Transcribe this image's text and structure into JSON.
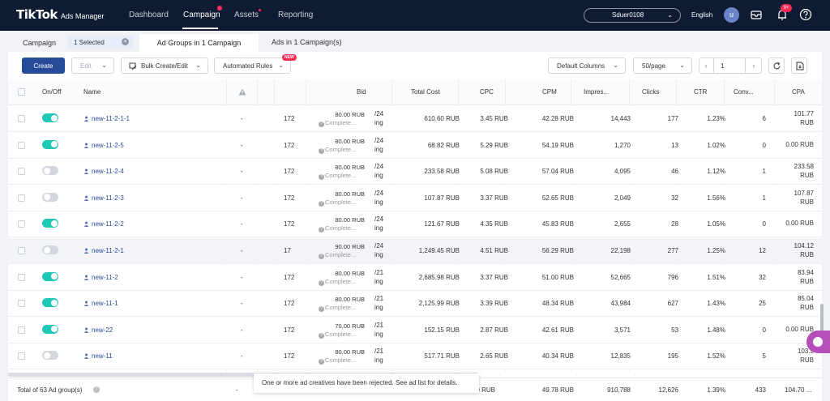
{
  "nav": {
    "logo_brand": "TikTok",
    "logo_sub": "Ads Manager",
    "items": [
      "Dashboard",
      "Campaign",
      "Assets",
      "Reporting"
    ],
    "account": "Sduer0108",
    "language": "English",
    "avatar": "u",
    "notification_badge": "9+"
  },
  "tabs": {
    "campaign": "Campaign",
    "selected_chip": "1 Selected",
    "chip_close": "×",
    "ad_groups": "Ad Groups in 1 Campaign",
    "ads": "Ads in 1 Campaign(s)"
  },
  "toolbar": {
    "create": "Create",
    "edit": "Edit",
    "bulk": "Bulk Create/Edit",
    "rules": "Automated Rules",
    "new_badge": "NEW",
    "columns": "Default Columns",
    "per_page": "50/page",
    "page": "1",
    "prev": "‹",
    "next": "›"
  },
  "table": {
    "headers": {
      "onoff": "On/Off",
      "name": "Name",
      "bid": "Bid",
      "total_cost": "Total Cost",
      "cpc": "CPC",
      "cpm": "CPM",
      "impressions": "Impres...",
      "clicks": "Clicks",
      "ctr": "CTR",
      "conversions": "Conv...",
      "cpa": "CPA"
    },
    "rows": [
      {
        "on": true,
        "name": "new-11-2-1-1",
        "status": "-",
        "budget": "172",
        "bid": "80.00 RUB",
        "bid_type": "Complete...",
        "sched_a": "/24",
        "sched_b": "ing",
        "cost": "610.60 RUB",
        "cpc": "3.45 RUB",
        "cpm": "42.28 RUB",
        "impr": "14,443",
        "clicks": "177",
        "ctr": "1.23%",
        "conv": "6",
        "cpa_a": "101.77",
        "cpa_b": "RUB"
      },
      {
        "on": true,
        "name": "new-11-2-5",
        "status": "-",
        "budget": "172",
        "bid": "80.00 RUB",
        "bid_type": "Complete...",
        "sched_a": "/24",
        "sched_b": "ing",
        "cost": "68.82 RUB",
        "cpc": "5.29 RUB",
        "cpm": "54.19 RUB",
        "impr": "1,270",
        "clicks": "13",
        "ctr": "1.02%",
        "conv": "0",
        "cpa_a": "0.00 RUB",
        "cpa_b": ""
      },
      {
        "on": false,
        "name": "new-11-2-4",
        "status": "-",
        "budget": "172",
        "bid": "80.00 RUB",
        "bid_type": "Complete...",
        "sched_a": "/24",
        "sched_b": "ing",
        "cost": "233.58 RUB",
        "cpc": "5.08 RUB",
        "cpm": "57.04 RUB",
        "impr": "4,095",
        "clicks": "46",
        "ctr": "1.12%",
        "conv": "1",
        "cpa_a": "233.58",
        "cpa_b": "RUB"
      },
      {
        "on": false,
        "name": "new-11-2-3",
        "status": "-",
        "budget": "172",
        "bid": "80.00 RUB",
        "bid_type": "Complete...",
        "sched_a": "/24",
        "sched_b": "ing",
        "cost": "107.87 RUB",
        "cpc": "3.37 RUB",
        "cpm": "52.65 RUB",
        "impr": "2,049",
        "clicks": "32",
        "ctr": "1.56%",
        "conv": "1",
        "cpa_a": "107.87",
        "cpa_b": "RUB"
      },
      {
        "on": true,
        "name": "new-11-2-2",
        "status": "-",
        "budget": "172",
        "bid": "80.00 RUB",
        "bid_type": "Complete...",
        "sched_a": "/24",
        "sched_b": "ing",
        "cost": "121.67 RUB",
        "cpc": "4.35 RUB",
        "cpm": "45.83 RUB",
        "impr": "2,655",
        "clicks": "28",
        "ctr": "1.05%",
        "conv": "0",
        "cpa_a": "0.00 RUB",
        "cpa_b": ""
      },
      {
        "on": false,
        "name": "new-11-2-1",
        "status": "-",
        "budget": "17",
        "bid": "90.00 RUB",
        "bid_type": "Complete...",
        "sched_a": "/24",
        "sched_b": "ing",
        "cost": "1,249.45 RUB",
        "cpc": "4.51 RUB",
        "cpm": "56.29 RUB",
        "impr": "22,198",
        "clicks": "277",
        "ctr": "1.25%",
        "conv": "12",
        "cpa_a": "104.12",
        "cpa_b": "RUB",
        "highlight": true
      },
      {
        "on": true,
        "name": "new-11-2",
        "status": "-",
        "budget": "172",
        "bid": "80.00 RUB",
        "bid_type": "Complete...",
        "sched_a": "/21",
        "sched_b": "ing",
        "cost": "2,685.98 RUB",
        "cpc": "3.37 RUB",
        "cpm": "51.00 RUB",
        "impr": "52,665",
        "clicks": "796",
        "ctr": "1.51%",
        "conv": "32",
        "cpa_a": "83.94",
        "cpa_b": "RUB"
      },
      {
        "on": true,
        "name": "new-11-1",
        "status": "-",
        "budget": "172",
        "bid": "80.00 RUB",
        "bid_type": "Complete...",
        "sched_a": "/21",
        "sched_b": "ing",
        "cost": "2,125.99 RUB",
        "cpc": "3.39 RUB",
        "cpm": "48.34 RUB",
        "impr": "43,984",
        "clicks": "627",
        "ctr": "1.43%",
        "conv": "25",
        "cpa_a": "85.04",
        "cpa_b": "RUB"
      },
      {
        "on": true,
        "name": "new-22",
        "status": "-",
        "budget": "172",
        "bid": "70.00 RUB",
        "bid_type": "Complete...",
        "sched_a": "/21",
        "sched_b": "ing",
        "cost": "152.15 RUB",
        "cpc": "2.87 RUB",
        "cpm": "42.61 RUB",
        "impr": "3,571",
        "clicks": "53",
        "ctr": "1.48%",
        "conv": "0",
        "cpa_a": "0.00 RUB",
        "cpa_b": ""
      },
      {
        "on": false,
        "name": "new-11",
        "status": "-",
        "budget": "172",
        "bid": "80.00 RUB",
        "bid_type": "Complete...",
        "sched_a": "/21",
        "sched_b": "ing",
        "cost": "517.71 RUB",
        "cpc": "2.65 RUB",
        "cpm": "40.34 RUB",
        "impr": "12,835",
        "clicks": "195",
        "ctr": "1.52%",
        "conv": "5",
        "cpa_a": "103.5",
        "cpa_b": "RUB"
      }
    ]
  },
  "footer": {
    "total": "Total of 63 Ad group(s)",
    "dash": "-",
    "cost": "59 RUB",
    "cpm": "49.78 RUB",
    "impr": "910,788",
    "clicks": "12,626",
    "ctr": "1.39%",
    "conv": "433",
    "cpa": "104.70 ..."
  },
  "toast": "One or more ad creatives have been rejected. See ad list for details.",
  "colors": {
    "nav_bg": "#0f1b33",
    "primary": "#274a99",
    "toggle_on": "#1fc7b4",
    "badge": "#fe2c55"
  }
}
